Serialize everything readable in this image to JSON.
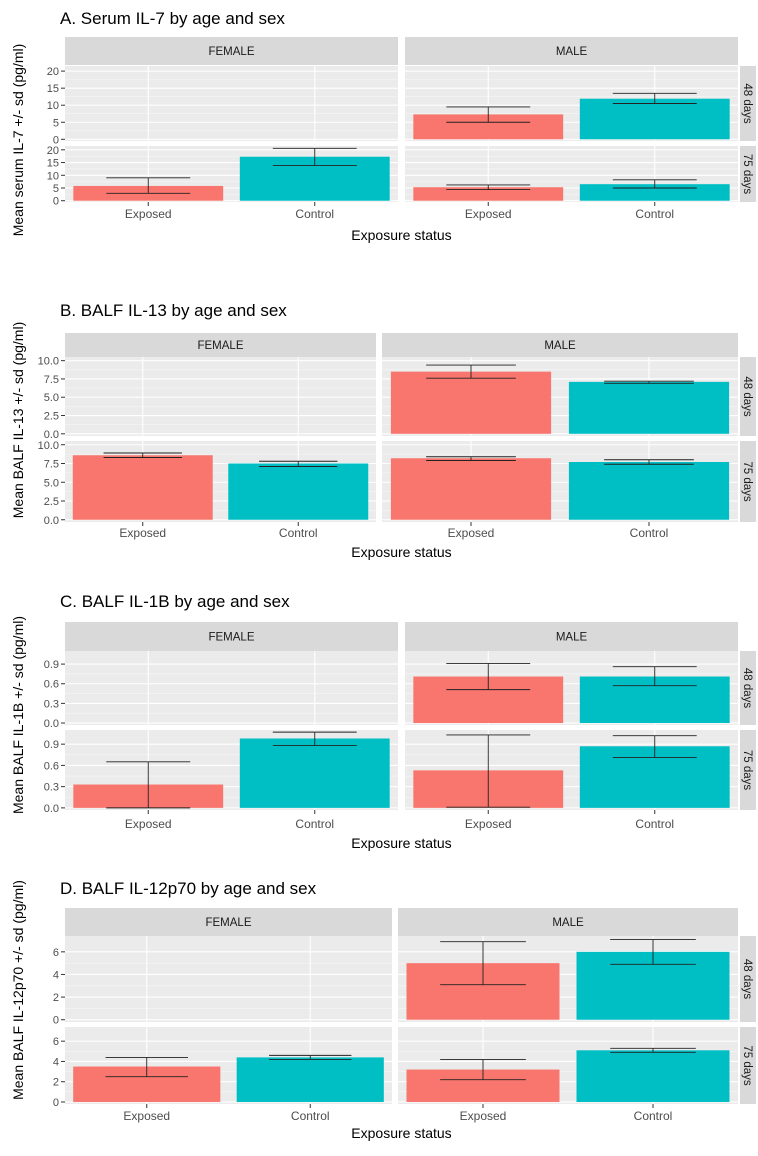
{
  "chart_data": [
    {
      "type": "bar",
      "title": "A. Serum IL-7 by age and sex",
      "xlabel": "Exposure status",
      "ylabel": "Mean serum IL-7 +/- sd (pg/ml)",
      "categories": [
        "Exposed",
        "Control"
      ],
      "columns": [
        "FEMALE",
        "MALE"
      ],
      "rows": [
        "48 days",
        "75 days"
      ],
      "ylim": [
        -0.5,
        21.5
      ],
      "yticks": [
        0,
        5,
        10,
        15,
        20
      ],
      "colors": {
        "Exposed": "#F8766D",
        "Control": "#00BFC4"
      },
      "cells": [
        {
          "column": "FEMALE",
          "row": "48 days",
          "values": [
            null,
            null
          ],
          "sd_low": [
            null,
            null
          ],
          "sd_high": [
            null,
            null
          ]
        },
        {
          "column": "MALE",
          "row": "48 days",
          "values": [
            7.3,
            11.9
          ],
          "sd_low": [
            5.0,
            10.5
          ],
          "sd_high": [
            9.5,
            13.5
          ]
        },
        {
          "column": "FEMALE",
          "row": "75 days",
          "values": [
            5.8,
            17.3
          ],
          "sd_low": [
            2.9,
            13.8
          ],
          "sd_high": [
            9.0,
            20.6
          ]
        },
        {
          "column": "MALE",
          "row": "75 days",
          "values": [
            5.3,
            6.5
          ],
          "sd_low": [
            4.4,
            5.0
          ],
          "sd_high": [
            6.2,
            8.2
          ]
        }
      ]
    },
    {
      "type": "bar",
      "title": "B. BALF IL-13 by age and sex",
      "xlabel": "Exposure status",
      "ylabel": "Mean BALF IL-13 +/- sd (pg/ml)",
      "categories": [
        "Exposed",
        "Control"
      ],
      "columns": [
        "FEMALE",
        "MALE"
      ],
      "rows": [
        "48 days",
        "75 days"
      ],
      "ylim": [
        -0.3,
        10.5
      ],
      "yticks": [
        "0.0",
        "2.5",
        "5.0",
        "7.5",
        "10.0"
      ],
      "colors": {
        "Exposed": "#F8766D",
        "Control": "#00BFC4"
      },
      "cells": [
        {
          "column": "FEMALE",
          "row": "48 days",
          "values": [
            null,
            null
          ],
          "sd_low": [
            null,
            null
          ],
          "sd_high": [
            null,
            null
          ]
        },
        {
          "column": "MALE",
          "row": "48 days",
          "values": [
            8.5,
            7.1
          ],
          "sd_low": [
            7.6,
            6.9
          ],
          "sd_high": [
            9.4,
            7.2
          ]
        },
        {
          "column": "FEMALE",
          "row": "75 days",
          "values": [
            8.6,
            7.5
          ],
          "sd_low": [
            8.3,
            7.1
          ],
          "sd_high": [
            8.9,
            7.8
          ]
        },
        {
          "column": "MALE",
          "row": "75 days",
          "values": [
            8.2,
            7.7
          ],
          "sd_low": [
            7.9,
            7.4
          ],
          "sd_high": [
            8.4,
            8.0
          ]
        }
      ]
    },
    {
      "type": "bar",
      "title": "C. BALF IL-1B by age and sex",
      "xlabel": "Exposure status",
      "ylabel": "Mean BALF IL-1B +/- sd (pg/ml)",
      "categories": [
        "Exposed",
        "Control"
      ],
      "columns": [
        "FEMALE",
        "MALE"
      ],
      "rows": [
        "48 days",
        "75 days"
      ],
      "ylim": [
        -0.03,
        1.1
      ],
      "yticks": [
        "0.0",
        "0.3",
        "0.6",
        "0.9"
      ],
      "colors": {
        "Exposed": "#F8766D",
        "Control": "#00BFC4"
      },
      "cells": [
        {
          "column": "FEMALE",
          "row": "48 days",
          "values": [
            null,
            null
          ],
          "sd_low": [
            null,
            null
          ],
          "sd_high": [
            null,
            null
          ]
        },
        {
          "column": "MALE",
          "row": "48 days",
          "values": [
            0.71,
            0.71
          ],
          "sd_low": [
            0.51,
            0.57
          ],
          "sd_high": [
            0.91,
            0.86
          ]
        },
        {
          "column": "FEMALE",
          "row": "75 days",
          "values": [
            0.33,
            0.98
          ],
          "sd_low": [
            0.0,
            0.88
          ],
          "sd_high": [
            0.65,
            1.07
          ]
        },
        {
          "column": "MALE",
          "row": "75 days",
          "values": [
            0.53,
            0.87
          ],
          "sd_low": [
            0.01,
            0.71
          ],
          "sd_high": [
            1.03,
            1.02
          ]
        }
      ]
    },
    {
      "type": "bar",
      "title": "D. BALF IL-12p70 by age and sex",
      "xlabel": "Exposure status",
      "ylabel": "Mean BALF IL-12p70 +/- sd (pg/ml)",
      "categories": [
        "Exposed",
        "Control"
      ],
      "columns": [
        "FEMALE",
        "MALE"
      ],
      "rows": [
        "48 days",
        "75 days"
      ],
      "ylim": [
        -0.2,
        7.4
      ],
      "yticks": [
        0,
        2,
        4,
        6
      ],
      "colors": {
        "Exposed": "#F8766D",
        "Control": "#00BFC4"
      },
      "cells": [
        {
          "column": "FEMALE",
          "row": "48 days",
          "values": [
            null,
            null
          ],
          "sd_low": [
            null,
            null
          ],
          "sd_high": [
            null,
            null
          ]
        },
        {
          "column": "MALE",
          "row": "48 days",
          "values": [
            5.0,
            6.0
          ],
          "sd_low": [
            3.1,
            4.9
          ],
          "sd_high": [
            6.9,
            7.1
          ]
        },
        {
          "column": "FEMALE",
          "row": "75 days",
          "values": [
            3.5,
            4.4
          ],
          "sd_low": [
            2.5,
            4.2
          ],
          "sd_high": [
            4.4,
            4.6
          ]
        },
        {
          "column": "MALE",
          "row": "75 days",
          "values": [
            3.2,
            5.1
          ],
          "sd_low": [
            2.2,
            4.9
          ],
          "sd_high": [
            4.2,
            5.3
          ]
        }
      ]
    }
  ]
}
